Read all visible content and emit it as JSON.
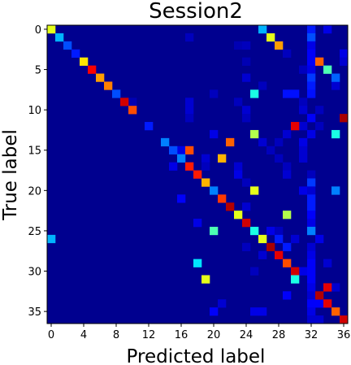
{
  "chart_data": {
    "type": "heatmap",
    "title": "Session2",
    "xlabel": "Predicted label",
    "ylabel": "True label",
    "n_classes": 37,
    "x_ticks": [
      0,
      4,
      8,
      12,
      16,
      20,
      24,
      28,
      32,
      36
    ],
    "y_ticks": [
      0,
      5,
      10,
      15,
      20,
      25,
      30,
      35
    ],
    "colormap": "jet",
    "value_range": [
      0,
      1
    ],
    "background_color": "#00008f",
    "cells": [
      [
        0,
        0,
        0.6
      ],
      [
        0,
        26,
        0.3
      ],
      [
        1,
        1,
        0.3
      ],
      [
        1,
        27,
        0.6
      ],
      [
        2,
        2,
        0.2
      ],
      [
        2,
        28,
        0.72
      ],
      [
        3,
        3,
        0.15
      ],
      [
        4,
        4,
        0.65
      ],
      [
        4,
        33,
        0.78
      ],
      [
        5,
        5,
        0.88
      ],
      [
        5,
        34,
        0.45
      ],
      [
        6,
        6,
        0.72
      ],
      [
        6,
        35,
        0.22
      ],
      [
        7,
        7,
        0.75
      ],
      [
        8,
        8,
        0.2
      ],
      [
        8,
        25,
        0.4
      ],
      [
        9,
        9,
        0.92
      ],
      [
        10,
        10,
        0.8
      ],
      [
        11,
        36,
        0.96
      ],
      [
        12,
        12,
        0.15
      ],
      [
        12,
        30,
        0.9
      ],
      [
        13,
        25,
        0.55
      ],
      [
        13,
        35,
        0.4
      ],
      [
        14,
        14,
        0.25
      ],
      [
        14,
        22,
        0.78
      ],
      [
        15,
        15,
        0.2
      ],
      [
        15,
        17,
        0.8
      ],
      [
        16,
        16,
        0.25
      ],
      [
        16,
        21,
        0.7
      ],
      [
        17,
        17,
        0.85
      ],
      [
        18,
        18,
        0.85
      ],
      [
        19,
        19,
        0.7
      ],
      [
        20,
        20,
        0.25
      ],
      [
        20,
        25,
        0.6
      ],
      [
        20,
        35,
        0.25
      ],
      [
        21,
        21,
        0.82
      ],
      [
        22,
        22,
        0.95
      ],
      [
        23,
        23,
        0.6
      ],
      [
        23,
        29,
        0.55
      ],
      [
        24,
        24,
        0.92
      ],
      [
        25,
        20,
        0.45
      ],
      [
        25,
        25,
        0.4
      ],
      [
        25,
        32,
        0.25
      ],
      [
        26,
        0,
        0.3
      ],
      [
        26,
        26,
        0.6
      ],
      [
        27,
        27,
        0.96
      ],
      [
        28,
        28,
        0.9
      ],
      [
        29,
        18,
        0.35
      ],
      [
        29,
        29,
        0.8
      ],
      [
        30,
        30,
        0.92
      ],
      [
        31,
        19,
        0.6
      ],
      [
        31,
        30,
        0.4
      ],
      [
        32,
        34,
        0.9
      ],
      [
        33,
        33,
        0.95
      ],
      [
        34,
        34,
        0.9
      ],
      [
        35,
        35,
        0.78
      ],
      [
        36,
        36,
        0.92
      ]
    ],
    "faint_cells": [
      [
        0,
        32,
        0.15
      ],
      [
        0,
        34,
        0.1
      ],
      [
        1,
        17,
        0.06
      ],
      [
        1,
        32,
        0.2
      ],
      [
        2,
        23,
        0.05
      ],
      [
        2,
        24,
        0.06
      ],
      [
        2,
        32,
        0.1
      ],
      [
        3,
        29,
        0.06
      ],
      [
        3,
        32,
        0.12
      ],
      [
        3,
        36,
        0.1
      ],
      [
        4,
        24,
        0.05
      ],
      [
        4,
        32,
        0.12
      ],
      [
        4,
        36,
        0.08
      ],
      [
        5,
        31,
        0.06
      ],
      [
        5,
        32,
        0.1
      ],
      [
        6,
        24,
        0.08
      ],
      [
        6,
        32,
        0.18
      ],
      [
        7,
        26,
        0.06
      ],
      [
        7,
        32,
        0.15
      ],
      [
        7,
        35,
        0.08
      ],
      [
        8,
        20,
        0.06
      ],
      [
        8,
        29,
        0.14
      ],
      [
        8,
        30,
        0.14
      ],
      [
        8,
        32,
        0.14
      ],
      [
        9,
        10,
        0.05
      ],
      [
        9,
        17,
        0.08
      ],
      [
        9,
        23,
        0.06
      ],
      [
        9,
        31,
        0.06
      ],
      [
        10,
        17,
        0.08
      ],
      [
        10,
        24,
        0.08
      ],
      [
        10,
        31,
        0.08
      ],
      [
        10,
        33,
        0.06
      ],
      [
        11,
        17,
        0.06
      ],
      [
        11,
        24,
        0.06
      ],
      [
        11,
        32,
        0.12
      ],
      [
        12,
        31,
        0.08
      ],
      [
        12,
        33,
        0.06
      ],
      [
        13,
        20,
        0.1
      ],
      [
        13,
        29,
        0.08
      ],
      [
        13,
        32,
        0.1
      ],
      [
        14,
        26,
        0.08
      ],
      [
        14,
        28,
        0.06
      ],
      [
        14,
        31,
        0.1
      ],
      [
        15,
        16,
        0.1
      ],
      [
        15,
        27,
        0.06
      ],
      [
        15,
        31,
        0.08
      ],
      [
        16,
        19,
        0.08
      ],
      [
        16,
        28,
        0.06
      ],
      [
        16,
        31,
        0.08
      ],
      [
        17,
        15,
        0.1
      ],
      [
        17,
        19,
        0.06
      ],
      [
        17,
        23,
        0.08
      ],
      [
        17,
        29,
        0.06
      ],
      [
        18,
        23,
        0.1
      ],
      [
        18,
        29,
        0.08
      ],
      [
        18,
        32,
        0.06
      ],
      [
        19,
        24,
        0.06
      ],
      [
        19,
        32,
        0.18
      ],
      [
        20,
        31,
        0.1
      ],
      [
        20,
        32,
        0.08
      ],
      [
        21,
        16,
        0.12
      ],
      [
        21,
        32,
        0.15
      ],
      [
        22,
        24,
        0.08
      ],
      [
        22,
        32,
        0.15
      ],
      [
        23,
        32,
        0.12
      ],
      [
        24,
        18,
        0.1
      ],
      [
        24,
        32,
        0.1
      ],
      [
        25,
        27,
        0.1
      ],
      [
        25,
        28,
        0.06
      ],
      [
        26,
        28,
        0.15
      ],
      [
        26,
        30,
        0.08
      ],
      [
        26,
        33,
        0.1
      ],
      [
        27,
        24,
        0.06
      ],
      [
        27,
        29,
        0.15
      ],
      [
        27,
        32,
        0.08
      ],
      [
        28,
        26,
        0.08
      ],
      [
        28,
        32,
        0.1
      ],
      [
        29,
        32,
        0.12
      ],
      [
        29,
        34,
        0.08
      ],
      [
        30,
        25,
        0.06
      ],
      [
        30,
        31,
        0.1
      ],
      [
        30,
        32,
        0.12
      ],
      [
        31,
        32,
        0.12
      ],
      [
        32,
        32,
        0.1
      ],
      [
        32,
        35,
        0.08
      ],
      [
        33,
        29,
        0.12
      ],
      [
        33,
        32,
        0.08
      ],
      [
        34,
        21,
        0.08
      ],
      [
        34,
        32,
        0.12
      ],
      [
        34,
        33,
        0.12
      ],
      [
        35,
        20,
        0.12
      ],
      [
        35,
        25,
        0.1
      ],
      [
        35,
        26,
        0.1
      ],
      [
        35,
        32,
        0.1
      ],
      [
        36,
        32,
        0.08
      ],
      [
        36,
        33,
        0.08
      ]
    ]
  }
}
